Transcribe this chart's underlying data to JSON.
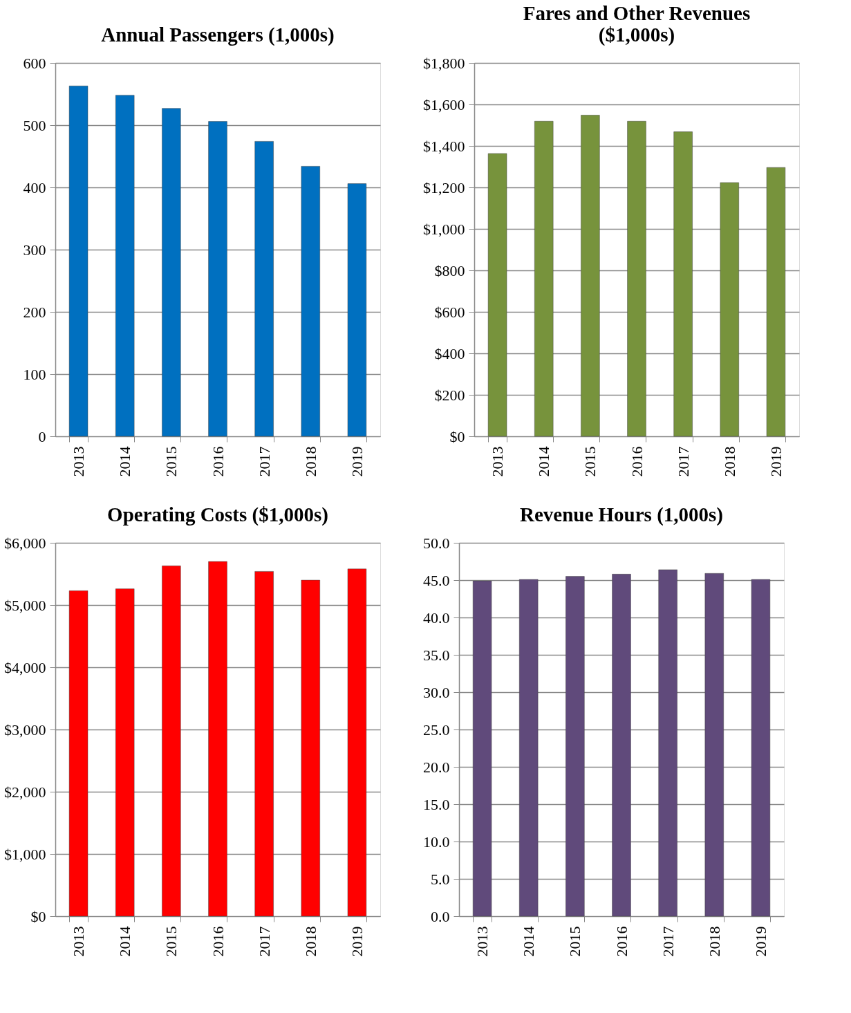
{
  "chart_data": [
    {
      "type": "bar",
      "title": "Annual Passengers (1,000s)",
      "categories": [
        "2013",
        "2014",
        "2015",
        "2016",
        "2017",
        "2018",
        "2019"
      ],
      "values": [
        563,
        548,
        527,
        506,
        474,
        434,
        406
      ],
      "color": "#0070c0",
      "ylim": [
        0,
        600
      ],
      "yticks": [
        0,
        100,
        200,
        300,
        400,
        500,
        600
      ],
      "grid": "y"
    },
    {
      "type": "bar",
      "title": "Fares and Other Revenues ($1,000s)",
      "categories": [
        "2013",
        "2014",
        "2015",
        "2016",
        "2017",
        "2018",
        "2019"
      ],
      "values": [
        1363,
        1519,
        1548,
        1519,
        1468,
        1223,
        1296
      ],
      "color": "#77933c",
      "ylim": [
        0,
        1800
      ],
      "yticks": [
        {
          "value": 0,
          "label": "$0"
        },
        {
          "value": 200,
          "label": "$200"
        },
        {
          "value": 400,
          "label": "$400"
        },
        {
          "value": 600,
          "label": "$600"
        },
        {
          "value": 800,
          "label": "$800"
        },
        {
          "value": 1000,
          "label": "$1,000"
        },
        {
          "value": 1200,
          "label": "$1,200"
        },
        {
          "value": 1400,
          "label": "$1,400"
        },
        {
          "value": 1600,
          "label": "$1,600"
        },
        {
          "value": 1800,
          "label": "$1,800"
        }
      ],
      "grid": "y"
    },
    {
      "type": "bar",
      "title": "Operating Costs ($1,000s)",
      "categories": [
        "2013",
        "2014",
        "2015",
        "2016",
        "2017",
        "2018",
        "2019"
      ],
      "values": [
        5230,
        5260,
        5630,
        5700,
        5540,
        5400,
        5580
      ],
      "color": "#ff0000",
      "ylim": [
        0,
        6000
      ],
      "yticks": [
        {
          "value": 0,
          "label": "$0"
        },
        {
          "value": 1000,
          "label": "$1,000"
        },
        {
          "value": 2000,
          "label": "$2,000"
        },
        {
          "value": 3000,
          "label": "$3,000"
        },
        {
          "value": 4000,
          "label": "$4,000"
        },
        {
          "value": 5000,
          "label": "$5,000"
        },
        {
          "value": 6000,
          "label": "$6,000"
        }
      ],
      "grid": "y"
    },
    {
      "type": "bar",
      "title": "Revenue Hours (1,000s)",
      "categories": [
        "2013",
        "2014",
        "2015",
        "2016",
        "2017",
        "2018",
        "2019"
      ],
      "values": [
        44.9,
        45.1,
        45.5,
        45.8,
        46.4,
        45.9,
        45.1
      ],
      "color": "#604a7b",
      "ylim": [
        0,
        50
      ],
      "yticks": [
        {
          "value": 0,
          "label": "0.0"
        },
        {
          "value": 5,
          "label": "5.0"
        },
        {
          "value": 10,
          "label": "10.0"
        },
        {
          "value": 15,
          "label": "15.0"
        },
        {
          "value": 20,
          "label": "20.0"
        },
        {
          "value": 25,
          "label": "25.0"
        },
        {
          "value": 30,
          "label": "30.0"
        },
        {
          "value": 35,
          "label": "35.0"
        },
        {
          "value": 40,
          "label": "40.0"
        },
        {
          "value": 45,
          "label": "45.0"
        },
        {
          "value": 50,
          "label": "50.0"
        }
      ],
      "grid": "y"
    }
  ]
}
